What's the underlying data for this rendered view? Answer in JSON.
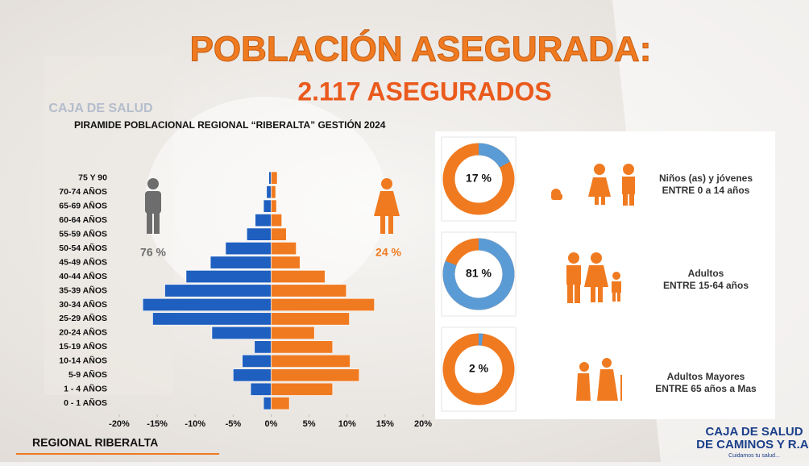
{
  "header": {
    "title": "POBLACIÓN ASEGURADA:",
    "subtitle": "2.117 ASEGURADOS",
    "background_text": "CAJA DE SALUD"
  },
  "chart_data": [
    {
      "type": "bar",
      "orientation": "horizontal",
      "title": "PIRAMIDE POBLACIONAL REGIONAL “RIBERALTA” GESTIÓN 2024",
      "categories": [
        "75 Y 90",
        "70-74 AÑOS",
        "65-69 AÑOS",
        "60-64 AÑOS",
        "55-59 AÑOS",
        "50-54 AÑOS",
        "45-49 AÑOS",
        "40-44 AÑOS",
        "35-39 AÑOS",
        "30-34 AÑOS",
        "25-29 AÑOS",
        "20-24 AÑOS",
        "15-19 AÑOS",
        "10-14 AÑOS",
        "5-9 AÑOS",
        "1 - 4 AÑOS",
        "0 - 1 AÑOS"
      ],
      "series": [
        {
          "color": "#1f5fbf",
          "values": [
            -0.3,
            -0.6,
            -1.0,
            -2.1,
            -3.2,
            -6.0,
            -8.0,
            -11.2,
            -14.0,
            -16.9,
            -15.6,
            -7.8,
            -2.2,
            -3.8,
            -5.0,
            -2.7,
            -1.0
          ]
        },
        {
          "color": "#f07a20",
          "values": [
            0.8,
            0.6,
            0.7,
            1.4,
            2.0,
            3.3,
            3.8,
            7.1,
            9.9,
            13.6,
            10.3,
            5.7,
            8.1,
            10.4,
            11.6,
            8.1,
            2.4
          ]
        }
      ],
      "xlim": [
        -20,
        20
      ],
      "xticks": [
        {
          "value": -20,
          "label": "-20%"
        },
        {
          "value": -15,
          "label": "-15%"
        },
        {
          "value": -10,
          "label": "-10%"
        },
        {
          "value": -5,
          "label": "-5%"
        },
        {
          "value": 0,
          "label": "0%"
        },
        {
          "value": 5,
          "label": "5%"
        },
        {
          "value": 10,
          "label": "10%"
        },
        {
          "value": 15,
          "label": "15%"
        },
        {
          "value": 20,
          "label": "20%"
        }
      ],
      "annotations": [
        "76 %",
        "24 %"
      ]
    },
    {
      "type": "pie",
      "values": [
        17
      ],
      "value_labels": [
        "17 %"
      ],
      "colors": [
        "#5b9bd5",
        "#f07a20"
      ]
    },
    {
      "type": "pie",
      "values": [
        81
      ],
      "value_labels": [
        "81 %"
      ],
      "colors": [
        "#5b9bd5",
        "#f07a20"
      ]
    },
    {
      "type": "pie",
      "values": [
        2
      ],
      "value_labels": [
        "2 %"
      ],
      "colors": [
        "#5b9bd5",
        "#f07a20"
      ]
    }
  ],
  "groups": [
    {
      "label": "Niños (as) y jóvenes",
      "range": "ENTRE 0 a 14 años"
    },
    {
      "label": "Adultos",
      "range": "ENTRE 15-64 años"
    },
    {
      "label": "Adultos Mayores",
      "range": "ENTRE 65 años a Mas"
    }
  ],
  "footer": {
    "region": "REGIONAL RIBERALTA"
  },
  "logo": {
    "line1": "CAJA DE SALUD",
    "line2": "DE CAMINOS Y R.A.",
    "tagline": "Cuidamos tu salud..."
  }
}
